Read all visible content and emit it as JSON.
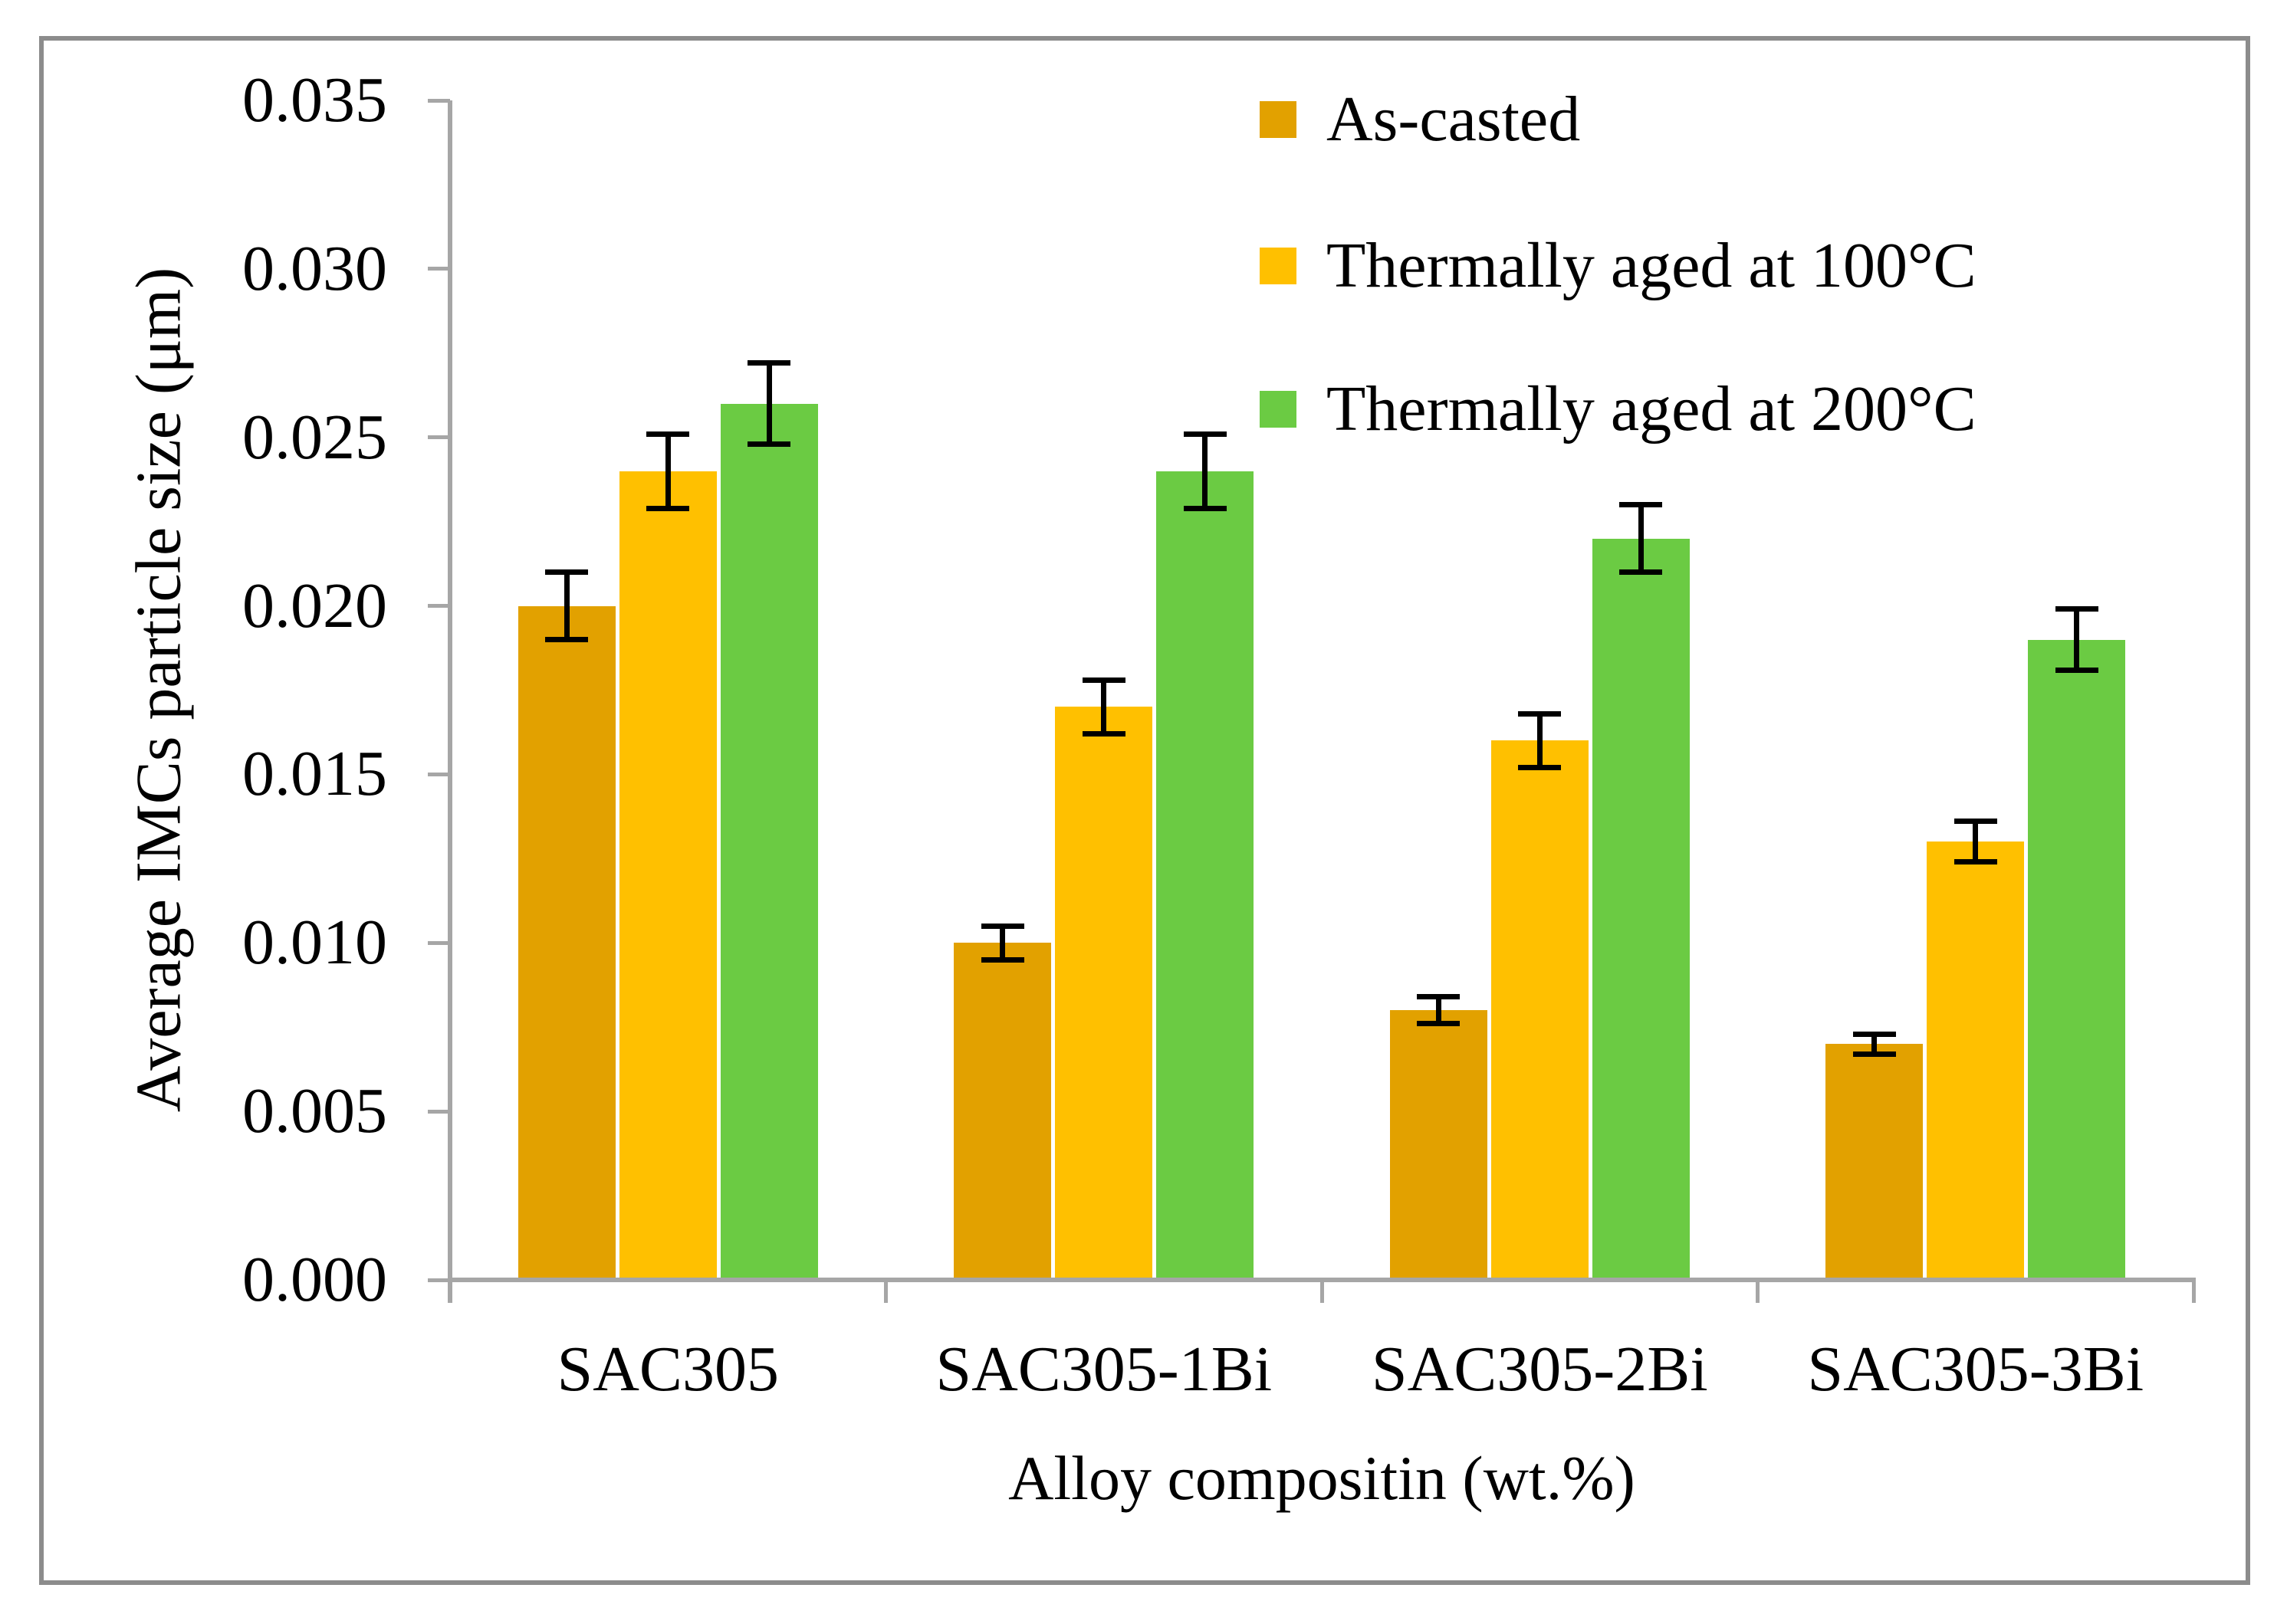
{
  "chart_data": {
    "type": "bar",
    "title": "",
    "xlabel": "Alloy compositin (wt.%)",
    "ylabel": "Average IMCs particle size (μm)",
    "ylim": [
      0,
      0.035
    ],
    "ytick_values": [
      0,
      0.005,
      0.01,
      0.015,
      0.02,
      0.025,
      0.03,
      0.035
    ],
    "yticks": [
      "0.000",
      "0.005",
      "0.010",
      "0.015",
      "0.020",
      "0.025",
      "0.030",
      "0.035"
    ],
    "grid": false,
    "legend_position": "top-right-inside",
    "categories": [
      "SAC305",
      "SAC305-1Bi",
      "SAC305-2Bi",
      "SAC305-3Bi"
    ],
    "series": [
      {
        "name": "As-casted",
        "color": "#E2A100",
        "values": [
          0.02,
          0.01,
          0.008,
          0.007
        ],
        "errors": [
          0.001,
          0.0005,
          0.0004,
          0.0003
        ]
      },
      {
        "name": "Thermally aged at 100°C",
        "color": "#FFC000",
        "values": [
          0.024,
          0.017,
          0.016,
          0.013
        ],
        "errors": [
          0.0011,
          0.0008,
          0.0008,
          0.0006
        ]
      },
      {
        "name": "Thermally aged at 200°C",
        "color": "#6BCB43",
        "values": [
          0.026,
          0.024,
          0.022,
          0.019
        ],
        "errors": [
          0.0012,
          0.0011,
          0.001,
          0.0009
        ]
      }
    ],
    "error_bar_color": "#000000",
    "axis_color": "#A6A6A6",
    "figure_border_color": "#8C8C8C"
  }
}
